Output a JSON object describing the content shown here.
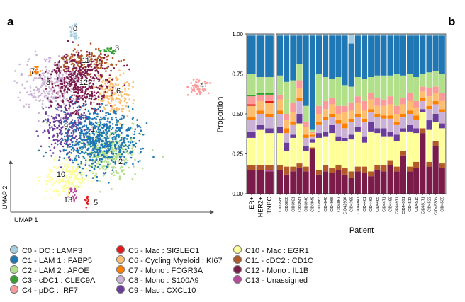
{
  "panels": {
    "left_letter": "a",
    "right_letter": "b"
  },
  "umap": {
    "x_axis_label": "UMAP 1",
    "y_axis_label": "UMAP 2",
    "cluster_labels": [
      "0",
      "1",
      "2",
      "3",
      "4",
      "5",
      "6",
      "7",
      "8",
      "9",
      "10",
      "11",
      "12",
      "13"
    ]
  },
  "clusters": [
    {
      "id": "C0",
      "label": "C0 - DC : LAMP3",
      "color": "#a6cee3"
    },
    {
      "id": "C1",
      "label": "C1 - LAM 1 : FABP5",
      "color": "#1f78b4"
    },
    {
      "id": "C2",
      "label": "C2 - LAM 2 : APOE",
      "color": "#b2df8a"
    },
    {
      "id": "C3",
      "label": "C3 - cDC1 : CLEC9A",
      "color": "#33a02c"
    },
    {
      "id": "C4",
      "label": "C4 - pDC : IRF7",
      "color": "#fb9a99"
    },
    {
      "id": "C5",
      "label": "C5 - Mac : SIGLEC1",
      "color": "#e31a1c"
    },
    {
      "id": "C6",
      "label": "C6 - Cycling Myeloid : KI67",
      "color": "#fdbf6f"
    },
    {
      "id": "C7",
      "label": "C7 - Mono : FCGR3A",
      "color": "#ff7f00"
    },
    {
      "id": "C8",
      "label": "C8 - Mono : S100A9",
      "color": "#cab2d6"
    },
    {
      "id": "C9",
      "label": "C9 - Mac : CXCL10",
      "color": "#6a3d9a"
    },
    {
      "id": "C10",
      "label": "C10 - Mac : EGR1",
      "color": "#ffff99"
    },
    {
      "id": "C11",
      "label": "C11 - cDC2 : CD1C",
      "color": "#b15928"
    },
    {
      "id": "C12",
      "label": "C12 - Mono : IL1B",
      "color": "#7b1b4a"
    },
    {
      "id": "C13",
      "label": "C13 - Unassigned",
      "color": "#b84a9e"
    }
  ],
  "chart_data": {
    "type": "bar",
    "stacked": true,
    "xlabel": "Patient",
    "ylabel": "Proportion",
    "ylim": [
      0,
      1
    ],
    "yticks": [
      "0.00",
      "0.25",
      "0.50",
      "0.75",
      "1.00"
    ],
    "subtype_categories": [
      "ER+",
      "HER2+",
      "TNBC"
    ],
    "patient_categories": [
      "CID3586",
      "CID3838",
      "CID3921",
      "CID3941",
      "CID3946",
      "CID3948",
      "CID3963",
      "CID4040",
      "CID4066",
      "CID4067",
      "CID4290A",
      "CID4398",
      "CID44041",
      "CID4461",
      "CID4463",
      "CID4465",
      "CID4471",
      "CID4495",
      "CID44971",
      "CID44991",
      "CID4513",
      "CID4515",
      "CID45171",
      "CID4523",
      "CID4530N",
      "CID4535"
    ],
    "series_order": [
      "C12",
      "C13",
      "C11",
      "C10",
      "C9",
      "C8",
      "C7",
      "C6",
      "C5",
      "C4",
      "C3",
      "C2",
      "C1",
      "C0"
    ],
    "subtype_bars": [
      {
        "C12": 0.15,
        "C13": 0.0,
        "C11": 0.03,
        "C10": 0.17,
        "C9": 0.04,
        "C8": 0.07,
        "C7": 0.02,
        "C6": 0.07,
        "C5": 0.01,
        "C4": 0.05,
        "C3": 0.01,
        "C2": 0.13,
        "C1": 0.24,
        "C0": 0.01
      },
      {
        "C12": 0.15,
        "C13": 0.0,
        "C11": 0.03,
        "C10": 0.22,
        "C9": 0.03,
        "C8": 0.07,
        "C7": 0.02,
        "C6": 0.06,
        "C5": 0.0,
        "C4": 0.04,
        "C3": 0.01,
        "C2": 0.1,
        "C1": 0.26,
        "C0": 0.01
      },
      {
        "C12": 0.14,
        "C13": 0.01,
        "C11": 0.03,
        "C10": 0.2,
        "C9": 0.03,
        "C8": 0.07,
        "C7": 0.02,
        "C6": 0.07,
        "C5": 0.01,
        "C4": 0.04,
        "C3": 0.01,
        "C2": 0.1,
        "C1": 0.26,
        "C0": 0.01
      }
    ],
    "patient_bars": [
      {
        "C12": 0.15,
        "C11": 0.03,
        "C10": 0.2,
        "C9": 0.04,
        "C8": 0.08,
        "C7": 0.02,
        "C6": 0.07,
        "C4": 0.03,
        "C2": 0.12,
        "C1": 0.25,
        "C0": 0.01
      },
      {
        "C12": 0.12,
        "C11": 0.05,
        "C10": 0.1,
        "C9": 0.05,
        "C8": 0.06,
        "C7": 0.03,
        "C6": 0.05,
        "C4": 0.04,
        "C2": 0.2,
        "C1": 0.29,
        "C0": 0.01
      },
      {
        "C12": 0.14,
        "C11": 0.03,
        "C10": 0.18,
        "C9": 0.02,
        "C8": 0.06,
        "C7": 0.02,
        "C6": 0.06,
        "C4": 0.06,
        "C2": 0.14,
        "C1": 0.28,
        "C0": 0.01
      },
      {
        "C12": 0.16,
        "C11": 0.03,
        "C10": 0.25,
        "C9": 0.06,
        "C8": 0.08,
        "C7": 0.02,
        "C6": 0.06,
        "C4": 0.05,
        "C2": 0.1,
        "C1": 0.18,
        "C0": 0.01
      },
      {
        "C12": 0.14,
        "C11": 0.03,
        "C10": 0.1,
        "C9": 0.03,
        "C8": 0.05,
        "C7": 0.02,
        "C6": 0.05,
        "C4": 0.03,
        "C2": 0.1,
        "C1": 0.44,
        "C0": 0.01
      },
      {
        "C12": 0.28,
        "C11": 0.01,
        "C10": 0.03,
        "C9": 0.02,
        "C8": 0.02,
        "C7": 0.01,
        "C6": 0.01,
        "C4": 0.01,
        "C2": 0.01,
        "C1": 0.59,
        "C0": 0.01
      },
      {
        "C12": 0.12,
        "C11": 0.03,
        "C10": 0.2,
        "C9": 0.03,
        "C8": 0.05,
        "C7": 0.02,
        "C6": 0.05,
        "C4": 0.05,
        "C2": 0.2,
        "C1": 0.24,
        "C0": 0.01
      },
      {
        "C12": 0.14,
        "C11": 0.04,
        "C10": 0.18,
        "C9": 0.03,
        "C8": 0.07,
        "C7": 0.02,
        "C6": 0.05,
        "C4": 0.05,
        "C2": 0.15,
        "C1": 0.26,
        "C0": 0.01
      },
      {
        "C12": 0.13,
        "C11": 0.03,
        "C10": 0.22,
        "C9": 0.05,
        "C8": 0.05,
        "C7": 0.02,
        "C6": 0.06,
        "C4": 0.04,
        "C2": 0.12,
        "C1": 0.27,
        "C0": 0.01
      },
      {
        "C12": 0.15,
        "C11": 0.03,
        "C10": 0.15,
        "C9": 0.03,
        "C8": 0.08,
        "C7": 0.02,
        "C6": 0.04,
        "C4": 0.05,
        "C2": 0.18,
        "C1": 0.26,
        "C0": 0.01
      },
      {
        "C12": 0.12,
        "C11": 0.04,
        "C10": 0.17,
        "C9": 0.02,
        "C8": 0.06,
        "C7": 0.03,
        "C6": 0.07,
        "C4": 0.04,
        "C2": 0.13,
        "C1": 0.31,
        "C0": 0.01
      },
      {
        "C12": 0.1,
        "C11": 0.04,
        "C10": 0.2,
        "C9": 0.03,
        "C8": 0.08,
        "C7": 0.02,
        "C6": 0.05,
        "C4": 0.05,
        "C2": 0.1,
        "C1": 0.27,
        "C0": 0.06
      },
      {
        "C12": 0.14,
        "C11": 0.03,
        "C10": 0.22,
        "C9": 0.03,
        "C8": 0.06,
        "C7": 0.02,
        "C6": 0.07,
        "C4": 0.04,
        "C2": 0.12,
        "C1": 0.26,
        "C0": 0.01
      },
      {
        "C12": 0.13,
        "C11": 0.04,
        "C10": 0.15,
        "C9": 0.04,
        "C8": 0.09,
        "C7": 0.02,
        "C6": 0.05,
        "C4": 0.06,
        "C2": 0.14,
        "C1": 0.27,
        "C0": 0.01
      },
      {
        "C12": 0.11,
        "C11": 0.03,
        "C10": 0.25,
        "C9": 0.06,
        "C8": 0.06,
        "C7": 0.02,
        "C6": 0.06,
        "C4": 0.04,
        "C2": 0.1,
        "C1": 0.26,
        "C0": 0.01
      },
      {
        "C12": 0.15,
        "C11": 0.03,
        "C10": 0.2,
        "C9": 0.03,
        "C8": 0.07,
        "C7": 0.02,
        "C6": 0.05,
        "C4": 0.05,
        "C2": 0.14,
        "C1": 0.25,
        "C0": 0.01
      },
      {
        "C12": 0.14,
        "C11": 0.04,
        "C10": 0.18,
        "C9": 0.05,
        "C8": 0.06,
        "C7": 0.02,
        "C6": 0.06,
        "C4": 0.04,
        "C2": 0.15,
        "C1": 0.25,
        "C0": 0.01
      },
      {
        "C12": 0.18,
        "C11": 0.03,
        "C10": 0.15,
        "C9": 0.03,
        "C8": 0.08,
        "C7": 0.02,
        "C6": 0.07,
        "C4": 0.05,
        "C2": 0.13,
        "C1": 0.25,
        "C0": 0.01
      },
      {
        "C12": 0.14,
        "C11": 0.03,
        "C10": 0.16,
        "C9": 0.04,
        "C8": 0.06,
        "C7": 0.02,
        "C6": 0.05,
        "C4": 0.05,
        "C2": 0.2,
        "C1": 0.24,
        "C0": 0.01
      },
      {
        "C12": 0.24,
        "C11": 0.03,
        "C10": 0.12,
        "C9": 0.02,
        "C8": 0.07,
        "C7": 0.02,
        "C6": 0.06,
        "C4": 0.04,
        "C2": 0.14,
        "C1": 0.25,
        "C0": 0.01
      },
      {
        "C12": 0.14,
        "C11": 0.03,
        "C10": 0.22,
        "C9": 0.04,
        "C8": 0.07,
        "C7": 0.02,
        "C6": 0.06,
        "C4": 0.05,
        "C2": 0.12,
        "C1": 0.24,
        "C0": 0.01
      },
      {
        "C12": 0.16,
        "C11": 0.04,
        "C10": 0.18,
        "C9": 0.03,
        "C8": 0.05,
        "C7": 0.03,
        "C6": 0.05,
        "C4": 0.04,
        "C2": 0.15,
        "C1": 0.26,
        "C0": 0.01
      },
      {
        "C12": 0.38,
        "C11": 0.03,
        "C10": 0.1,
        "C9": 0.02,
        "C8": 0.05,
        "C7": 0.02,
        "C6": 0.04,
        "C4": 0.03,
        "C2": 0.08,
        "C1": 0.24,
        "C0": 0.01
      },
      {
        "C12": 0.17,
        "C11": 0.03,
        "C10": 0.2,
        "C9": 0.06,
        "C8": 0.07,
        "C7": 0.02,
        "C6": 0.06,
        "C4": 0.05,
        "C2": 0.1,
        "C1": 0.23,
        "C0": 0.01
      },
      {
        "C12": 0.3,
        "C11": 0.03,
        "C10": 0.12,
        "C9": 0.05,
        "C8": 0.06,
        "C7": 0.02,
        "C6": 0.05,
        "C4": 0.04,
        "C2": 0.1,
        "C1": 0.22,
        "C0": 0.01
      },
      {
        "C12": 0.16,
        "C11": 0.03,
        "C10": 0.22,
        "C9": 0.03,
        "C8": 0.07,
        "C7": 0.02,
        "C6": 0.05,
        "C4": 0.05,
        "C2": 0.12,
        "C1": 0.24,
        "C0": 0.01
      }
    ]
  }
}
